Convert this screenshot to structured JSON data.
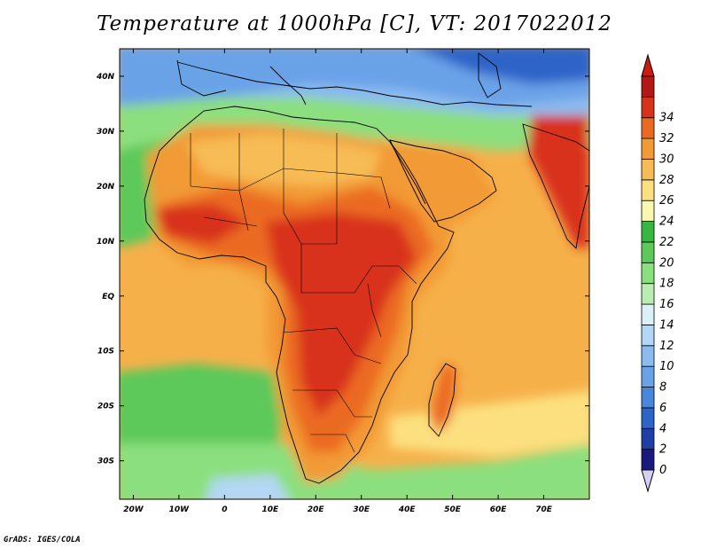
{
  "title": "Temperature at 1000hPa [C], VT: 2017022012",
  "credit": "GrADS: IGES/COLA",
  "map": {
    "lon_range": [
      -23,
      80
    ],
    "lat_range": [
      -37,
      45
    ],
    "x_ticks": [
      {
        "value": -20,
        "label": "20W"
      },
      {
        "value": -10,
        "label": "10W"
      },
      {
        "value": 0,
        "label": "0"
      },
      {
        "value": 10,
        "label": "10E"
      },
      {
        "value": 20,
        "label": "20E"
      },
      {
        "value": 30,
        "label": "30E"
      },
      {
        "value": 40,
        "label": "40E"
      },
      {
        "value": 50,
        "label": "50E"
      },
      {
        "value": 60,
        "label": "60E"
      },
      {
        "value": 70,
        "label": "70E"
      }
    ],
    "y_ticks": [
      {
        "value": 40,
        "label": "40N"
      },
      {
        "value": 30,
        "label": "30N"
      },
      {
        "value": 20,
        "label": "20N"
      },
      {
        "value": 10,
        "label": "10N"
      },
      {
        "value": 0,
        "label": "EQ"
      },
      {
        "value": -10,
        "label": "10S"
      },
      {
        "value": -20,
        "label": "20S"
      },
      {
        "value": -30,
        "label": "30S"
      }
    ]
  },
  "colorbar": {
    "levels": [
      "0",
      "2",
      "4",
      "6",
      "8",
      "10",
      "12",
      "14",
      "16",
      "18",
      "20",
      "22",
      "24",
      "26",
      "28",
      "30",
      "32",
      "34"
    ],
    "colors": [
      "#1a1a7e",
      "#1f3fa8",
      "#2e63c7",
      "#4a86dc",
      "#6aa2e8",
      "#8cbcef",
      "#b4d7f5",
      "#dcf0f7",
      "#b9edb2",
      "#8cdf7e",
      "#5cc95a",
      "#36b73f",
      "#fbf6b0",
      "#fce07f",
      "#f7bc55",
      "#f29a36",
      "#eb6a22",
      "#d8331a",
      "#b41812"
    ],
    "over_color": "#cc1b10",
    "under_color": "#d6d0f2"
  }
}
